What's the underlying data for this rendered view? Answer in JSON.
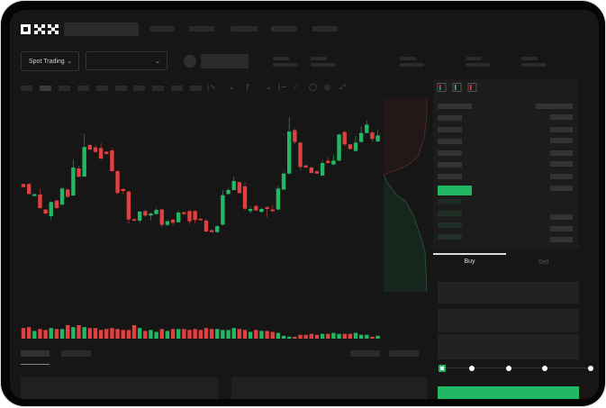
{
  "header": {
    "logo": "OKX"
  },
  "toolbar": {
    "market_type": "Spot Trading"
  },
  "order_form": {
    "tabs": [
      {
        "label": "Buy",
        "active": true
      },
      {
        "label": "Sell",
        "active": false
      }
    ],
    "slider_percent": 0
  },
  "colors": {
    "up": "#22b863",
    "down": "#e0403f",
    "background": "#161617",
    "buy_button": "#22b863"
  },
  "chart_data": {
    "type": "candlestick",
    "fields": [
      "open",
      "high",
      "low",
      "close"
    ],
    "candles": [
      [
        44.4,
        44.9,
        41.8,
        42.2
      ],
      [
        44.4,
        45.3,
        36.7,
        37.1
      ],
      [
        35.6,
        37.3,
        35.3,
        36.9
      ],
      [
        36.7,
        41.1,
        26.0,
        26.7
      ],
      [
        25.6,
        26.2,
        21.8,
        22.7
      ],
      [
        20.7,
        31.6,
        17.6,
        31.1
      ],
      [
        32.2,
        32.9,
        25.8,
        26.7
      ],
      [
        29.3,
        42.2,
        28.4,
        41.1
      ],
      [
        40.4,
        41.1,
        34.2,
        35.1
      ],
      [
        36.0,
        62.7,
        35.6,
        56.7
      ],
      [
        56.0,
        57.8,
        49.3,
        49.8
      ],
      [
        50.0,
        81.3,
        49.6,
        71.8
      ],
      [
        73.3,
        74.2,
        69.6,
        70.0
      ],
      [
        71.6,
        73.1,
        67.6,
        68.2
      ],
      [
        71.1,
        74.9,
        62.2,
        63.3
      ],
      [
        68.4,
        68.9,
        66.2,
        66.7
      ],
      [
        69.3,
        71.1,
        53.3,
        54.0
      ],
      [
        54.0,
        54.7,
        36.9,
        37.8
      ],
      [
        40.7,
        41.3,
        36.9,
        39.3
      ],
      [
        38.9,
        39.3,
        15.1,
        18.2
      ],
      [
        18.4,
        19.1,
        16.7,
        17.3
      ],
      [
        17.3,
        25.1,
        15.6,
        24.0
      ],
      [
        24.4,
        25.6,
        20.0,
        21.1
      ],
      [
        21.1,
        23.3,
        17.3,
        22.7
      ],
      [
        22.2,
        26.7,
        21.6,
        25.3
      ],
      [
        25.6,
        26.2,
        12.4,
        14.2
      ],
      [
        14.2,
        17.6,
        13.1,
        16.9
      ],
      [
        18.0,
        18.9,
        13.8,
        15.8
      ],
      [
        16.2,
        24.7,
        15.8,
        23.3
      ],
      [
        23.6,
        24.0,
        21.8,
        22.2
      ],
      [
        24.4,
        25.3,
        14.7,
        16.9
      ],
      [
        24.4,
        25.1,
        15.6,
        17.8
      ],
      [
        18.7,
        19.1,
        17.3,
        17.8
      ],
      [
        17.3,
        18.9,
        8.9,
        9.3
      ],
      [
        10.2,
        11.1,
        8.7,
        8.9
      ],
      [
        8.9,
        14.2,
        8.4,
        13.3
      ],
      [
        14.4,
        39.8,
        13.8,
        36.2
      ],
      [
        37.1,
        41.6,
        36.7,
        40.0
      ],
      [
        40.0,
        50.0,
        39.6,
        46.7
      ],
      [
        45.8,
        46.7,
        37.3,
        37.8
      ],
      [
        42.7,
        45.8,
        24.9,
        26.2
      ],
      [
        24.4,
        27.6,
        22.7,
        26.0
      ],
      [
        28.2,
        28.9,
        24.4,
        24.9
      ],
      [
        23.8,
        26.7,
        23.3,
        26.0
      ],
      [
        27.3,
        28.0,
        20.0,
        26.0
      ],
      [
        25.6,
        28.9,
        24.0,
        24.4
      ],
      [
        25.6,
        43.1,
        25.1,
        41.1
      ],
      [
        40.4,
        53.3,
        40.0,
        52.2
      ],
      [
        52.2,
        93.8,
        51.6,
        83.3
      ],
      [
        84.4,
        85.3,
        74.0,
        75.6
      ],
      [
        75.1,
        75.8,
        54.7,
        57.1
      ],
      [
        58.2,
        58.9,
        56.0,
        56.7
      ],
      [
        56.7,
        57.3,
        52.0,
        52.7
      ],
      [
        53.8,
        54.7,
        52.0,
        52.2
      ],
      [
        50.7,
        62.2,
        50.2,
        60.0
      ],
      [
        61.6,
        64.0,
        59.6,
        60.0
      ],
      [
        58.9,
        65.8,
        58.4,
        61.8
      ],
      [
        61.8,
        81.6,
        61.3,
        81.1
      ],
      [
        82.9,
        84.0,
        72.4,
        73.8
      ],
      [
        73.8,
        74.4,
        70.0,
        70.4
      ],
      [
        68.9,
        80.0,
        68.4,
        75.1
      ],
      [
        75.6,
        87.1,
        75.1,
        82.2
      ],
      [
        82.2,
        91.6,
        82.0,
        88.4
      ],
      [
        82.7,
        83.8,
        75.6,
        77.8
      ],
      [
        76.0,
        84.4,
        75.6,
        80.4
      ]
    ],
    "volume": [
      11,
      12,
      8,
      10,
      9,
      11,
      10,
      10,
      14,
      12,
      14,
      12,
      11,
      11,
      9,
      10,
      11,
      10,
      9,
      9,
      14,
      11,
      8,
      9,
      7,
      10,
      8,
      10,
      10,
      10,
      9,
      10,
      9,
      11,
      10,
      10,
      9,
      9,
      11,
      10,
      9,
      7,
      9,
      8,
      8,
      7,
      6,
      3,
      2,
      2,
      4,
      4,
      5,
      4,
      5,
      5,
      6,
      5,
      5,
      5,
      6,
      4,
      4,
      2,
      3
    ],
    "grid": true
  }
}
